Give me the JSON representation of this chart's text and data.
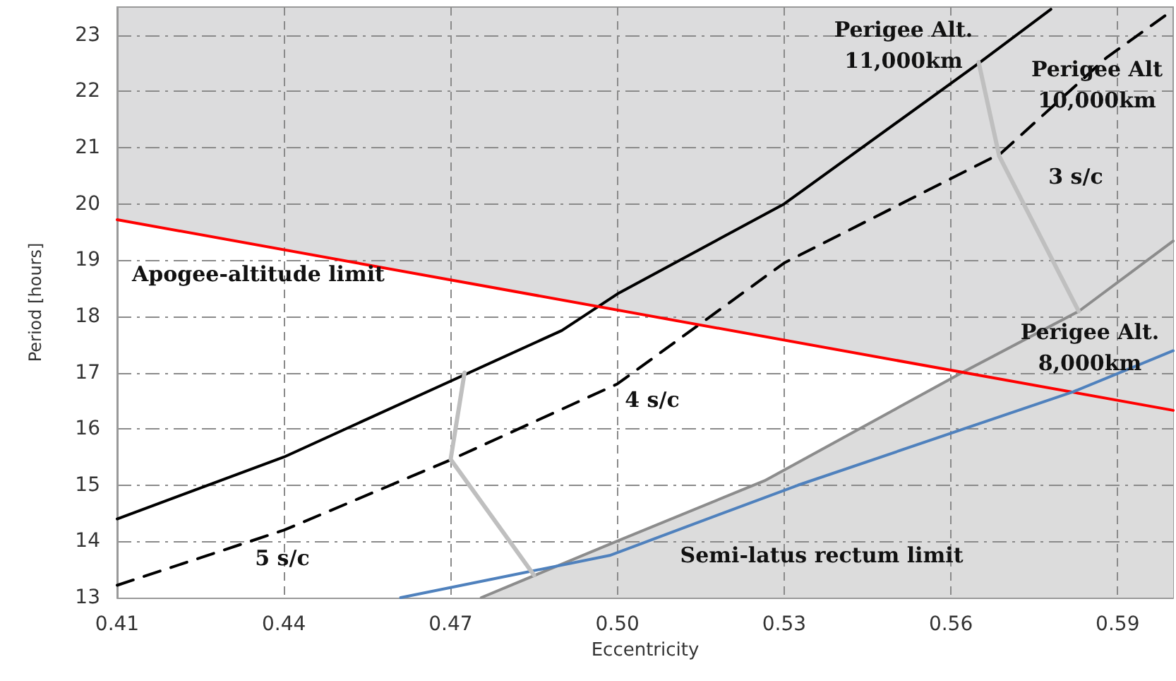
{
  "chart_data": {
    "type": "line",
    "xlabel": "Eccentricity",
    "ylabel": "Period [hours]",
    "xlim": [
      0.41,
      0.6
    ],
    "xticks": [
      0.41,
      0.44,
      0.47,
      {
        "value": 0.5,
        "label": "0.50"
      },
      0.53,
      0.56,
      0.59
    ],
    "ylim": [
      13,
      23.5
    ],
    "yticks": [
      13,
      14,
      15,
      16,
      17,
      18,
      19,
      20,
      21,
      22,
      23
    ],
    "grid": true,
    "marker": "none",
    "series": [
      {
        "color": "#000000",
        "line_style": "solid",
        "x": [
          0.41,
          0.44,
          0.47,
          0.49,
          0.5,
          0.53,
          0.565,
          0.578
        ],
        "values": [
          14.4,
          15.5,
          16.85,
          17.75,
          18.4,
          20.0,
          22.5,
          23.46
        ]
      },
      {
        "color": "#000000",
        "line_style": "dashed",
        "x": [
          0.41,
          0.44,
          0.47,
          0.5,
          0.53,
          0.569,
          0.588,
          0.6
        ],
        "values": [
          13.22,
          14.2,
          15.45,
          16.8,
          18.95,
          20.9,
          22.6,
          23.45
        ]
      },
      {
        "type": "area",
        "color": "#8c8c8c",
        "line_style": "solid",
        "x": [
          0.4755,
          0.4986,
          0.5265,
          0.562,
          0.583,
          0.6
        ],
        "values": [
          13.0,
          13.95,
          15.08,
          17.0,
          18.09,
          19.34
        ]
      },
      {
        "type": "area",
        "color": "#ff0000",
        "line_style": "solid",
        "x": [
          0.41,
          0.6
        ],
        "values": [
          19.72,
          16.33
        ]
      },
      {
        "color": "#4f81bd",
        "line_style": "solid",
        "x": [
          0.461,
          0.48,
          0.4986,
          0.5325,
          0.582,
          0.6
        ],
        "values": [
          13.0,
          13.38,
          13.75,
          15.0,
          16.66,
          17.39
        ]
      },
      {
        "color": "#bfbfbf",
        "line_style": "solid",
        "x": [
          0.4725,
          0.47,
          0.485
        ],
        "values": [
          17.0,
          15.46,
          13.4
        ]
      },
      {
        "color": "#bfbfbf",
        "line_style": "solid",
        "x": [
          0.565,
          0.5687,
          0.583
        ],
        "values": [
          22.52,
          20.85,
          18.09
        ]
      }
    ],
    "annotations": [
      "Perigee Alt.\n11,000km",
      "Perigee Alt\n10,000km",
      "3 s/c",
      "Perigee Alt.\n8,000km",
      "Apogee-altitude limit",
      "4 s/c",
      "5 s/c",
      "Semi-latus rectum limit"
    ]
  }
}
